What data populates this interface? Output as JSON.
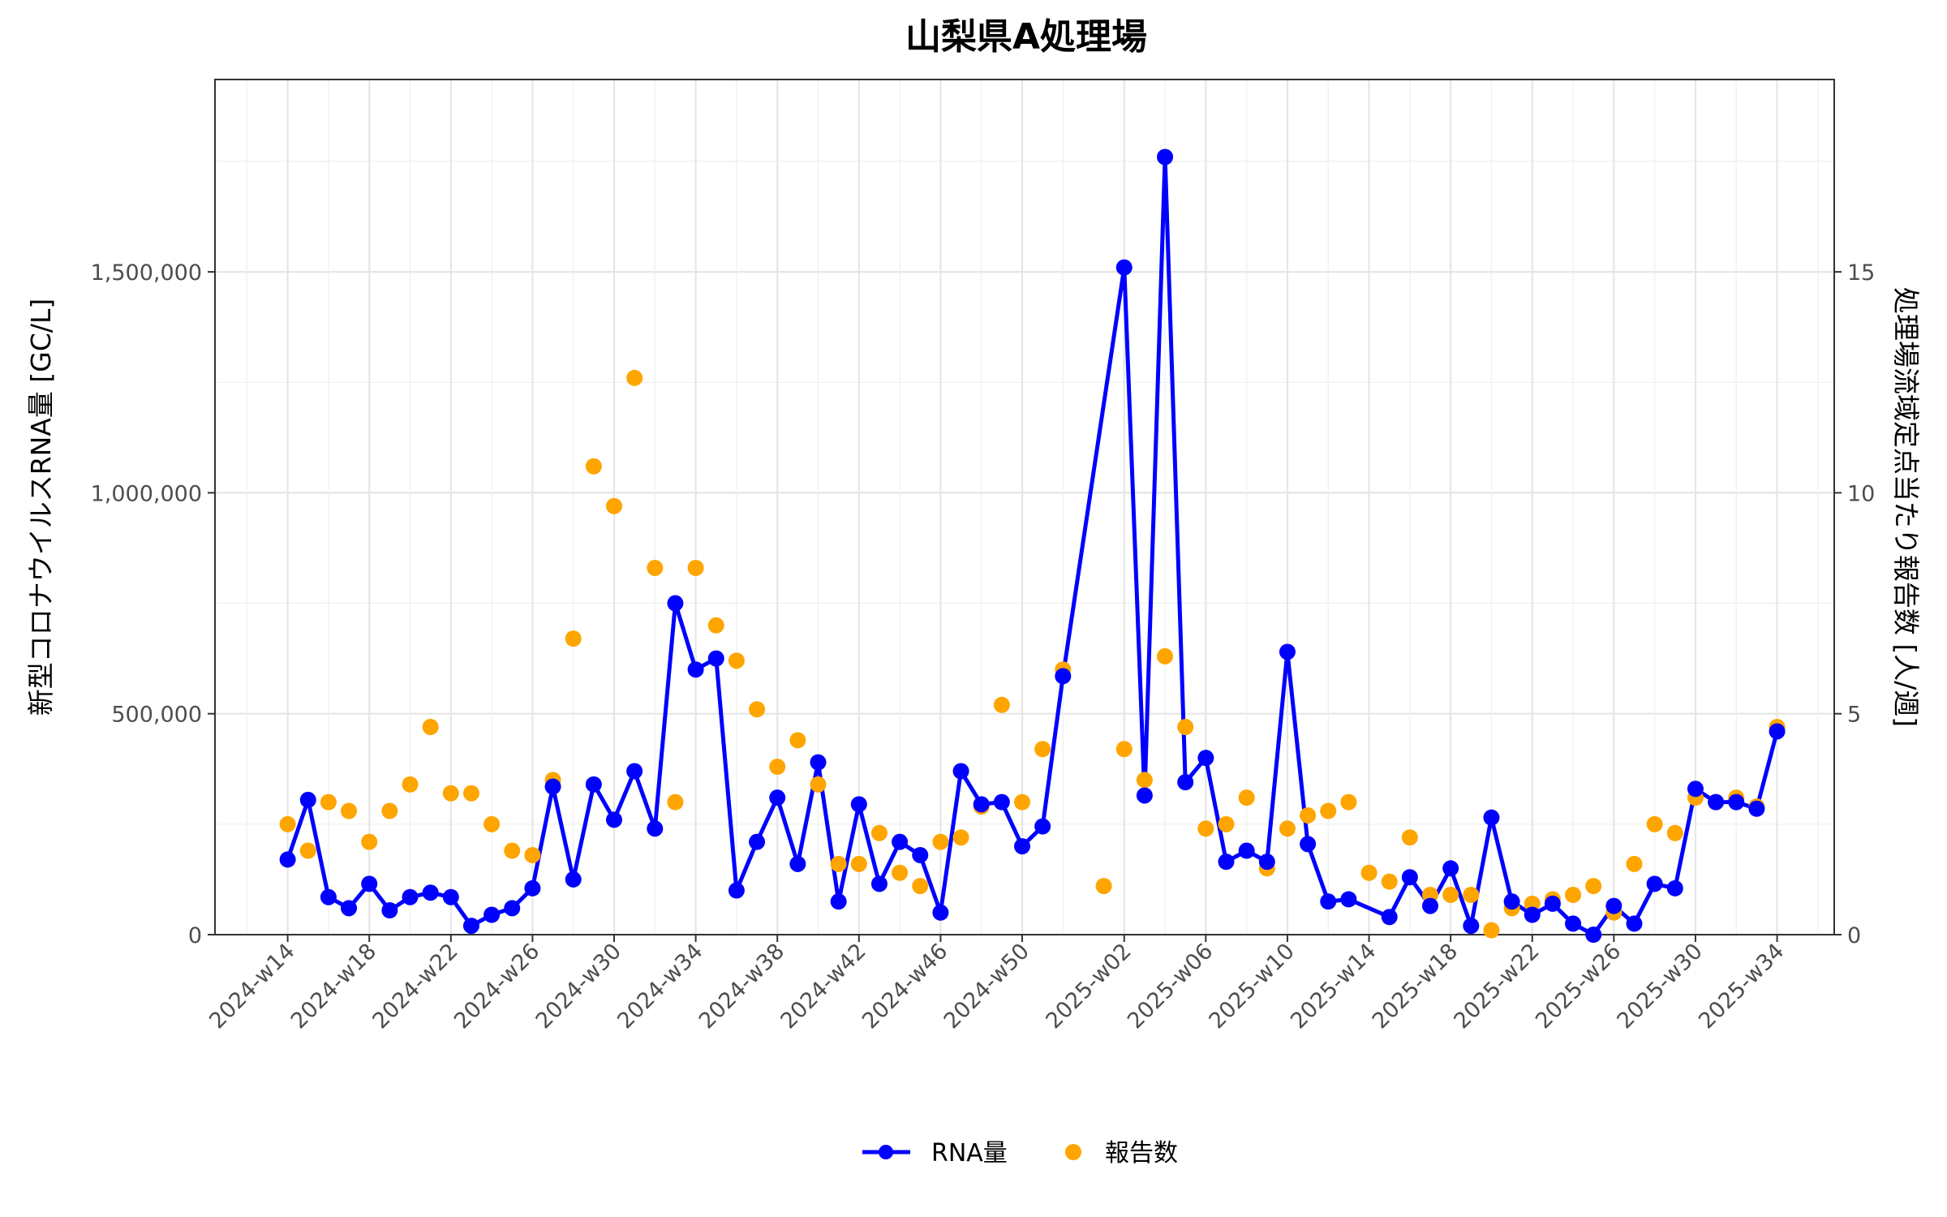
{
  "chart_data": {
    "type": "line",
    "title": "山梨県A処理場",
    "ylabel_left": "新型コロナウイルスRNA量 [GC/L]",
    "ylabel_right": "処理場流域定点当たり報告数 [人/週]",
    "xlabel": "",
    "ylim_left": [
      0,
      1950000
    ],
    "ylim_right": [
      0,
      17.5
    ],
    "yticks_left": [
      0,
      500000,
      1000000,
      1500000
    ],
    "yticks_left_labels": [
      "0",
      "500,000",
      "1,000,000",
      "1,500,000"
    ],
    "yticks_right": [
      0,
      5,
      10,
      15
    ],
    "yticks_right_labels": [
      "0",
      "5",
      "10",
      "15"
    ],
    "xtick_labels": [
      "2024-w14",
      "2024-w18",
      "2024-w22",
      "2024-w26",
      "2024-w30",
      "2024-w34",
      "2024-w38",
      "2024-w42",
      "2024-w46",
      "2024-w50",
      "2025-w02",
      "2025-w06",
      "2025-w10",
      "2025-w14",
      "2025-w18",
      "2025-w22",
      "2025-w26",
      "2025-w30",
      "2025-w34"
    ],
    "grid": true,
    "legend_position": "bottom",
    "series": [
      {
        "name": "RNA量",
        "axis": "left",
        "type": "line",
        "color": "#0000FF",
        "points": [
          [
            "2024-w14",
            170000
          ],
          [
            "2024-w15",
            305000
          ],
          [
            "2024-w16",
            85000
          ],
          [
            "2024-w17",
            60000
          ],
          [
            "2024-w18",
            115000
          ],
          [
            "2024-w19",
            55000
          ],
          [
            "2024-w20",
            85000
          ],
          [
            "2024-w21",
            95000
          ],
          [
            "2024-w22",
            85000
          ],
          [
            "2024-w23",
            20000
          ],
          [
            "2024-w24",
            45000
          ],
          [
            "2024-w25",
            60000
          ],
          [
            "2024-w26",
            105000
          ],
          [
            "2024-w27",
            335000
          ],
          [
            "2024-w28",
            125000
          ],
          [
            "2024-w29",
            340000
          ],
          [
            "2024-w30",
            260000
          ],
          [
            "2024-w31",
            370000
          ],
          [
            "2024-w32",
            240000
          ],
          [
            "2024-w33",
            750000
          ],
          [
            "2024-w34",
            600000
          ],
          [
            "2024-w35",
            625000
          ],
          [
            "2024-w36",
            100000
          ],
          [
            "2024-w37",
            210000
          ],
          [
            "2024-w38",
            310000
          ],
          [
            "2024-w39",
            160000
          ],
          [
            "2024-w40",
            390000
          ],
          [
            "2024-w41",
            75000
          ],
          [
            "2024-w42",
            295000
          ],
          [
            "2024-w43",
            115000
          ],
          [
            "2024-w44",
            210000
          ],
          [
            "2024-w45",
            180000
          ],
          [
            "2024-w46",
            50000
          ],
          [
            "2024-w47",
            370000
          ],
          [
            "2024-w48",
            295000
          ],
          [
            "2024-w49",
            300000
          ],
          [
            "2024-w50",
            200000
          ],
          [
            "2024-w51",
            245000
          ],
          [
            "2024-w52",
            585000
          ],
          [
            "2025-w02",
            1510000
          ],
          [
            "2025-w03",
            315000
          ],
          [
            "2025-w04",
            1760000
          ],
          [
            "2025-w05",
            345000
          ],
          [
            "2025-w06",
            400000
          ],
          [
            "2025-w07",
            165000
          ],
          [
            "2025-w08",
            190000
          ],
          [
            "2025-w09",
            165000
          ],
          [
            "2025-w10",
            640000
          ],
          [
            "2025-w11",
            205000
          ],
          [
            "2025-w12",
            75000
          ],
          [
            "2025-w13",
            80000
          ],
          [
            "2025-w15",
            40000
          ],
          [
            "2025-w16",
            130000
          ],
          [
            "2025-w17",
            65000
          ],
          [
            "2025-w18",
            150000
          ],
          [
            "2025-w19",
            20000
          ],
          [
            "2025-w20",
            265000
          ],
          [
            "2025-w21",
            75000
          ],
          [
            "2025-w22",
            45000
          ],
          [
            "2025-w23",
            70000
          ],
          [
            "2025-w24",
            25000
          ],
          [
            "2025-w25",
            0
          ],
          [
            "2025-w26",
            65000
          ],
          [
            "2025-w27",
            25000
          ],
          [
            "2025-w28",
            115000
          ],
          [
            "2025-w29",
            105000
          ],
          [
            "2025-w30",
            330000
          ],
          [
            "2025-w31",
            300000
          ],
          [
            "2025-w32",
            300000
          ],
          [
            "2025-w33",
            285000
          ],
          [
            "2025-w34",
            460000
          ]
        ]
      },
      {
        "name": "報告数",
        "axis": "right",
        "type": "scatter",
        "color": "#FFA500",
        "points": [
          [
            "2024-w14",
            2.5
          ],
          [
            "2024-w15",
            1.9
          ],
          [
            "2024-w16",
            3.0
          ],
          [
            "2024-w17",
            2.8
          ],
          [
            "2024-w18",
            2.1
          ],
          [
            "2024-w19",
            2.8
          ],
          [
            "2024-w20",
            3.4
          ],
          [
            "2024-w21",
            4.7
          ],
          [
            "2024-w22",
            3.2
          ],
          [
            "2024-w23",
            3.2
          ],
          [
            "2024-w24",
            2.5
          ],
          [
            "2024-w25",
            1.9
          ],
          [
            "2024-w26",
            1.8
          ],
          [
            "2024-w27",
            3.5
          ],
          [
            "2024-w28",
            6.7
          ],
          [
            "2024-w29",
            10.6
          ],
          [
            "2024-w30",
            9.7
          ],
          [
            "2024-w31",
            12.6
          ],
          [
            "2024-w32",
            8.3
          ],
          [
            "2024-w33",
            3.0
          ],
          [
            "2024-w34",
            8.3
          ],
          [
            "2024-w35",
            7.0
          ],
          [
            "2024-w36",
            6.2
          ],
          [
            "2024-w37",
            5.1
          ],
          [
            "2024-w38",
            3.8
          ],
          [
            "2024-w39",
            4.4
          ],
          [
            "2024-w40",
            3.4
          ],
          [
            "2024-w41",
            1.6
          ],
          [
            "2024-w42",
            1.6
          ],
          [
            "2024-w43",
            2.3
          ],
          [
            "2024-w44",
            1.4
          ],
          [
            "2024-w45",
            1.1
          ],
          [
            "2024-w46",
            2.1
          ],
          [
            "2024-w47",
            2.2
          ],
          [
            "2024-w48",
            2.9
          ],
          [
            "2024-w49",
            5.2
          ],
          [
            "2024-w50",
            3.0
          ],
          [
            "2024-w51",
            4.2
          ],
          [
            "2024-w52",
            6.0
          ],
          [
            "2025-w01",
            1.1
          ],
          [
            "2025-w02",
            4.2
          ],
          [
            "2025-w03",
            3.5
          ],
          [
            "2025-w04",
            6.3
          ],
          [
            "2025-w05",
            4.7
          ],
          [
            "2025-w06",
            2.4
          ],
          [
            "2025-w07",
            2.5
          ],
          [
            "2025-w08",
            3.1
          ],
          [
            "2025-w09",
            1.5
          ],
          [
            "2025-w10",
            2.4
          ],
          [
            "2025-w11",
            2.7
          ],
          [
            "2025-w12",
            2.8
          ],
          [
            "2025-w13",
            3.0
          ],
          [
            "2025-w14",
            1.4
          ],
          [
            "2025-w15",
            1.2
          ],
          [
            "2025-w16",
            2.2
          ],
          [
            "2025-w17",
            0.9
          ],
          [
            "2025-w18",
            0.9
          ],
          [
            "2025-w19",
            0.9
          ],
          [
            "2025-w20",
            0.1
          ],
          [
            "2025-w21",
            0.6
          ],
          [
            "2025-w22",
            0.7
          ],
          [
            "2025-w23",
            0.8
          ],
          [
            "2025-w24",
            0.9
          ],
          [
            "2025-w25",
            1.1
          ],
          [
            "2025-w26",
            0.5
          ],
          [
            "2025-w27",
            1.6
          ],
          [
            "2025-w28",
            2.5
          ],
          [
            "2025-w29",
            2.3
          ],
          [
            "2025-w30",
            3.1
          ],
          [
            "2025-w31",
            3.0
          ],
          [
            "2025-w32",
            3.1
          ],
          [
            "2025-w33",
            2.9
          ],
          [
            "2025-w34",
            4.7
          ]
        ]
      }
    ]
  }
}
